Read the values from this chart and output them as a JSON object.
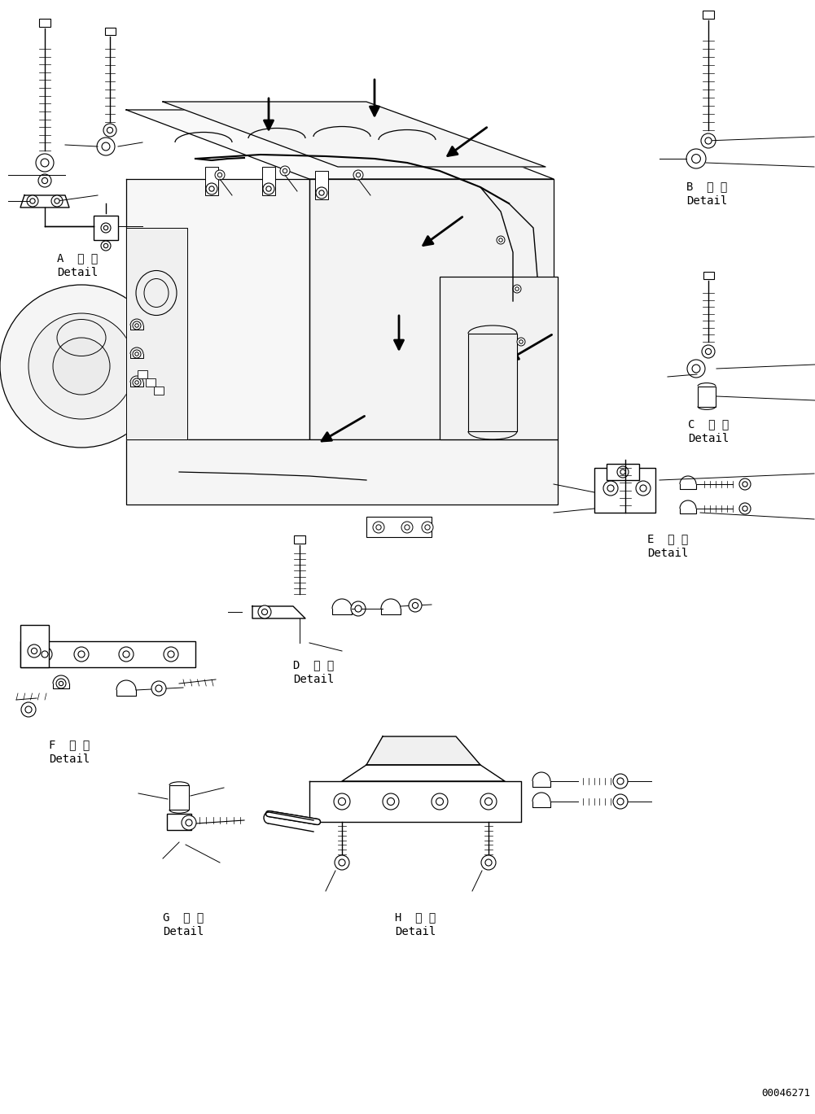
{
  "bg_color": "#ffffff",
  "line_color": "#000000",
  "fig_width": 10.01,
  "fig_height": 13.69,
  "dpi": 100,
  "part_number": "00046271",
  "label_A": {
    "kx": 0.095,
    "ky": 0.815,
    "kanji": "A 詳 細",
    "romaji": "Detail"
  },
  "label_B": {
    "kx": 0.845,
    "ky": 0.87,
    "kanji": "B 詳 細",
    "romaji": "Detail"
  },
  "label_C": {
    "kx": 0.845,
    "ky": 0.655,
    "kanji": "C 詳 細",
    "romaji": "Detail"
  },
  "label_D": {
    "kx": 0.38,
    "ky": 0.44,
    "kanji": "D 詳 細",
    "romaji": "Detail"
  },
  "label_E": {
    "kx": 0.79,
    "ky": 0.44,
    "kanji": "E 詳 細",
    "romaji": "Detail"
  },
  "label_F": {
    "kx": 0.07,
    "ky": 0.345,
    "kanji": "F 詳 細",
    "romaji": "Detail"
  },
  "label_G": {
    "kx": 0.22,
    "ky": 0.085,
    "kanji": "G 詳 細",
    "romaji": "Detail"
  },
  "label_H": {
    "kx": 0.51,
    "ky": 0.085,
    "kanji": "H 詳 細",
    "romaji": "Detail"
  }
}
